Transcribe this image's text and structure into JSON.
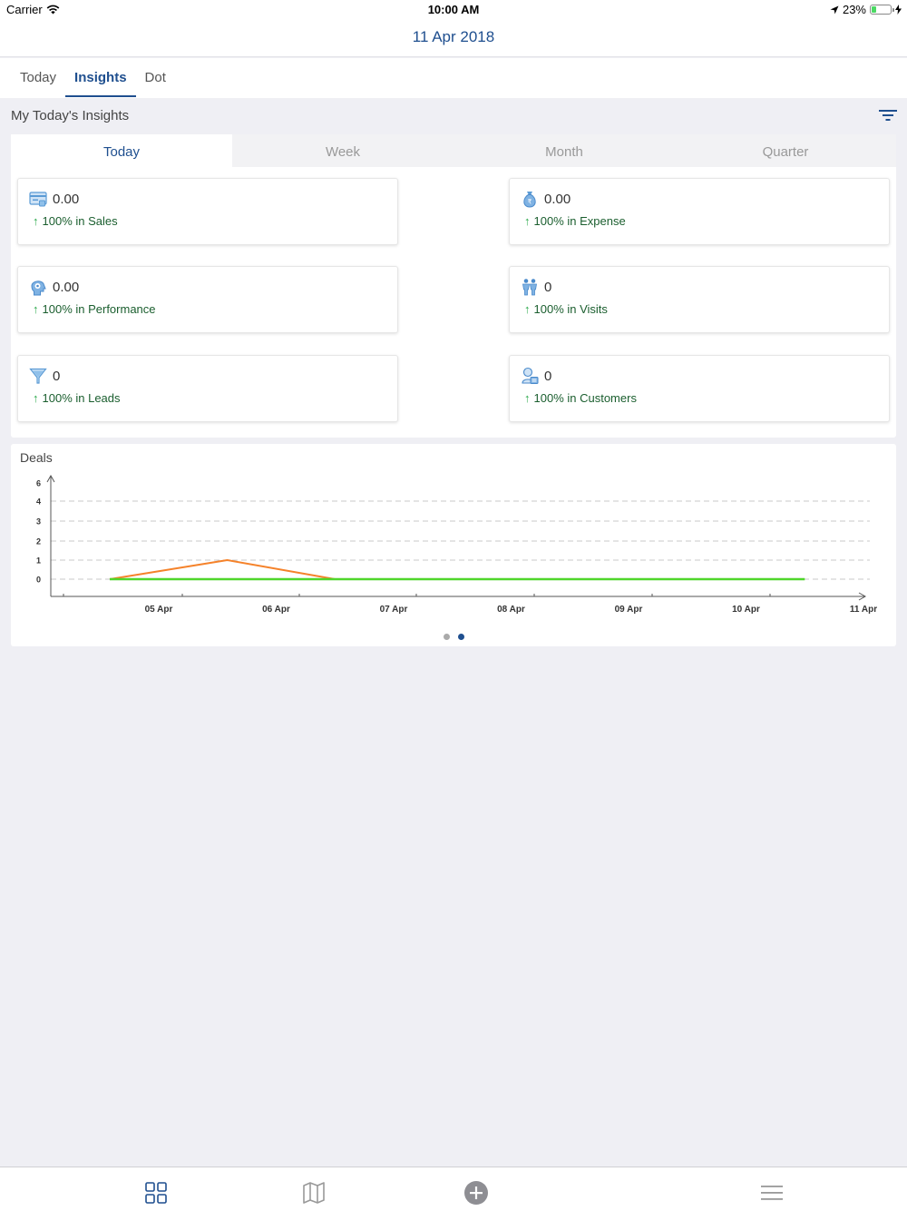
{
  "status_bar": {
    "carrier": "Carrier",
    "time": "10:00 AM",
    "battery": "23%",
    "battery_level": 0.23
  },
  "header": {
    "title": "11 Apr 2018"
  },
  "top_tabs": [
    {
      "label": "Today"
    },
    {
      "label": "Insights"
    },
    {
      "label": "Dot"
    }
  ],
  "section": {
    "title": "My Today's Insights"
  },
  "period_tabs": [
    {
      "label": "Today"
    },
    {
      "label": "Week"
    },
    {
      "label": "Month"
    },
    {
      "label": "Quarter"
    }
  ],
  "cards": [
    {
      "value": "0.00",
      "change": "100% in Sales",
      "icon": "sales-icon"
    },
    {
      "value": "0.00",
      "change": "100% in Expense",
      "icon": "money-bag-icon"
    },
    {
      "value": "0.00",
      "change": "100% in Performance",
      "icon": "performance-icon"
    },
    {
      "value": "0",
      "change": "100% in Visits",
      "icon": "visits-icon"
    },
    {
      "value": "0",
      "change": "100% in Leads",
      "icon": "funnel-icon"
    },
    {
      "value": "0",
      "change": "100% in Customers",
      "icon": "customer-icon"
    }
  ],
  "deals": {
    "title": "Deals",
    "pager_total": 2,
    "pager_active": 1
  },
  "chart_data": {
    "type": "line",
    "title": "Deals",
    "xlabel": "",
    "ylabel": "",
    "x_ticks": [
      "05 Apr",
      "06 Apr",
      "07 Apr",
      "08 Apr",
      "09 Apr",
      "10 Apr",
      "11 Apr"
    ],
    "y_ticks": [
      "0",
      "1",
      "2",
      "3",
      "4",
      "6"
    ],
    "ylim": [
      0,
      6
    ],
    "grid": "dashed-horizontal",
    "series": [
      {
        "color": "#f5822a",
        "x": [
          "04 Apr 14:00",
          "05 Apr 14:00",
          "06 Apr 12:00"
        ],
        "y": [
          0,
          1,
          0
        ]
      },
      {
        "color": "#4fd62b",
        "x": [
          "04 Apr 14:00",
          "10 Apr 12:00"
        ],
        "y": [
          0,
          0
        ]
      }
    ]
  },
  "tab_bar": [
    {
      "icon": "dashboard-grid-icon"
    },
    {
      "icon": "map-icon"
    },
    {
      "icon": "add-circle-icon"
    },
    {
      "icon": "menu-icon"
    }
  ]
}
